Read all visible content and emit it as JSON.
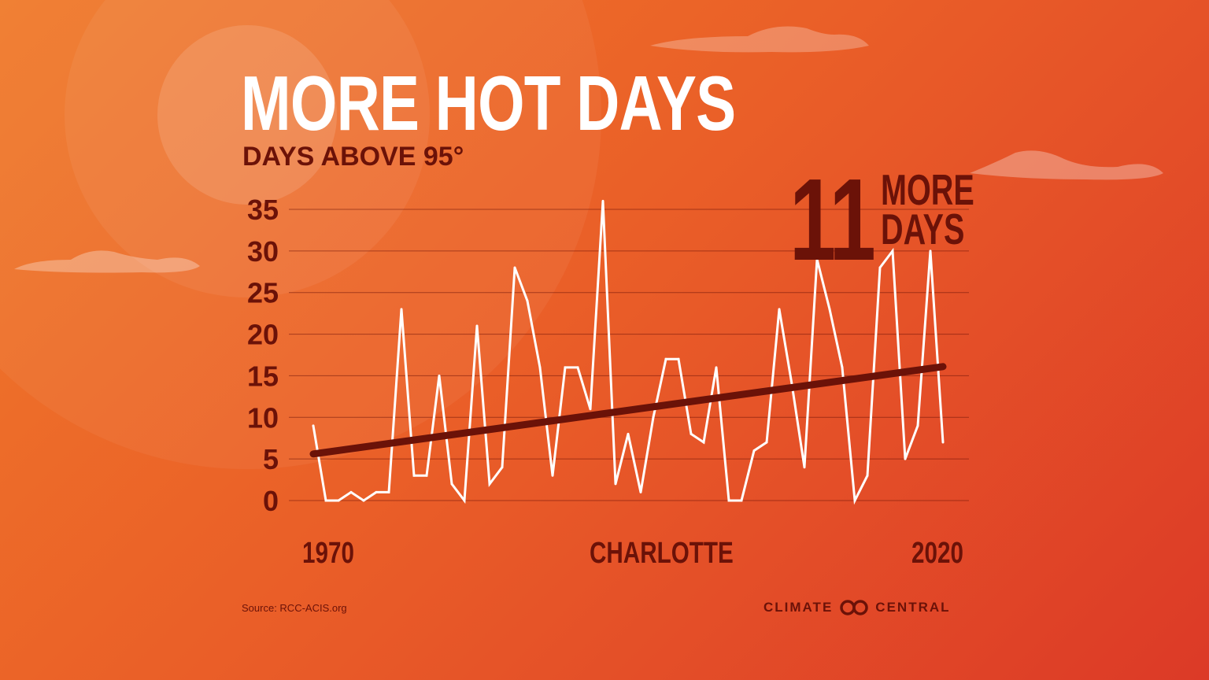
{
  "title": "MORE HOT DAYS",
  "subtitle": "DAYS ABOVE 95°",
  "callout": {
    "number": "11",
    "line1": "MORE",
    "line2": "DAYS"
  },
  "x_labels": {
    "first": "1970",
    "center": "CHARLOTTE",
    "last": "2020"
  },
  "source": "Source: RCC-ACIS.org",
  "logo": {
    "left": "CLIMATE",
    "right": "CENTRAL"
  },
  "colors": {
    "background_start": "#f07a2a",
    "background_end": "#dc3a27",
    "dark_text": "#6b1208",
    "data_line": "#ffffff",
    "trend_line": "#6b1208"
  },
  "chart_data": {
    "type": "line",
    "title": "MORE HOT DAYS",
    "subtitle": "DAYS ABOVE 95°",
    "xlabel": "CHARLOTTE",
    "ylabel": "",
    "xlim": [
      1970,
      2020
    ],
    "ylim": [
      0,
      35
    ],
    "yticks": [
      0,
      5,
      10,
      15,
      20,
      25,
      30,
      35
    ],
    "grid": true,
    "legend": "none",
    "series": [
      {
        "x": [
          1970,
          1971,
          1972,
          1973,
          1974,
          1975,
          1976,
          1977,
          1978,
          1979,
          1980,
          1981,
          1982,
          1983,
          1984,
          1985,
          1986,
          1987,
          1988,
          1989,
          1990,
          1991,
          1992,
          1993,
          1994,
          1995,
          1996,
          1997,
          1998,
          1999,
          2000,
          2001,
          2002,
          2003,
          2004,
          2005,
          2006,
          2007,
          2008,
          2009,
          2010,
          2011,
          2012,
          2013,
          2014,
          2015,
          2016,
          2017,
          2018,
          2019,
          2020
        ],
        "values": [
          9,
          0,
          0,
          1,
          0,
          1,
          1,
          23,
          3,
          3,
          15,
          2,
          0,
          21,
          2,
          4,
          28,
          24,
          16,
          3,
          16,
          16,
          11,
          36,
          2,
          8,
          1,
          10,
          17,
          17,
          8,
          7,
          16,
          0,
          0,
          6,
          7,
          23,
          14,
          4,
          29,
          23,
          16,
          0,
          3,
          28,
          30,
          5,
          9,
          30,
          7
        ]
      }
    ],
    "trend": {
      "start_value": 5.6,
      "end_value": 16.1,
      "change": 11
    }
  }
}
